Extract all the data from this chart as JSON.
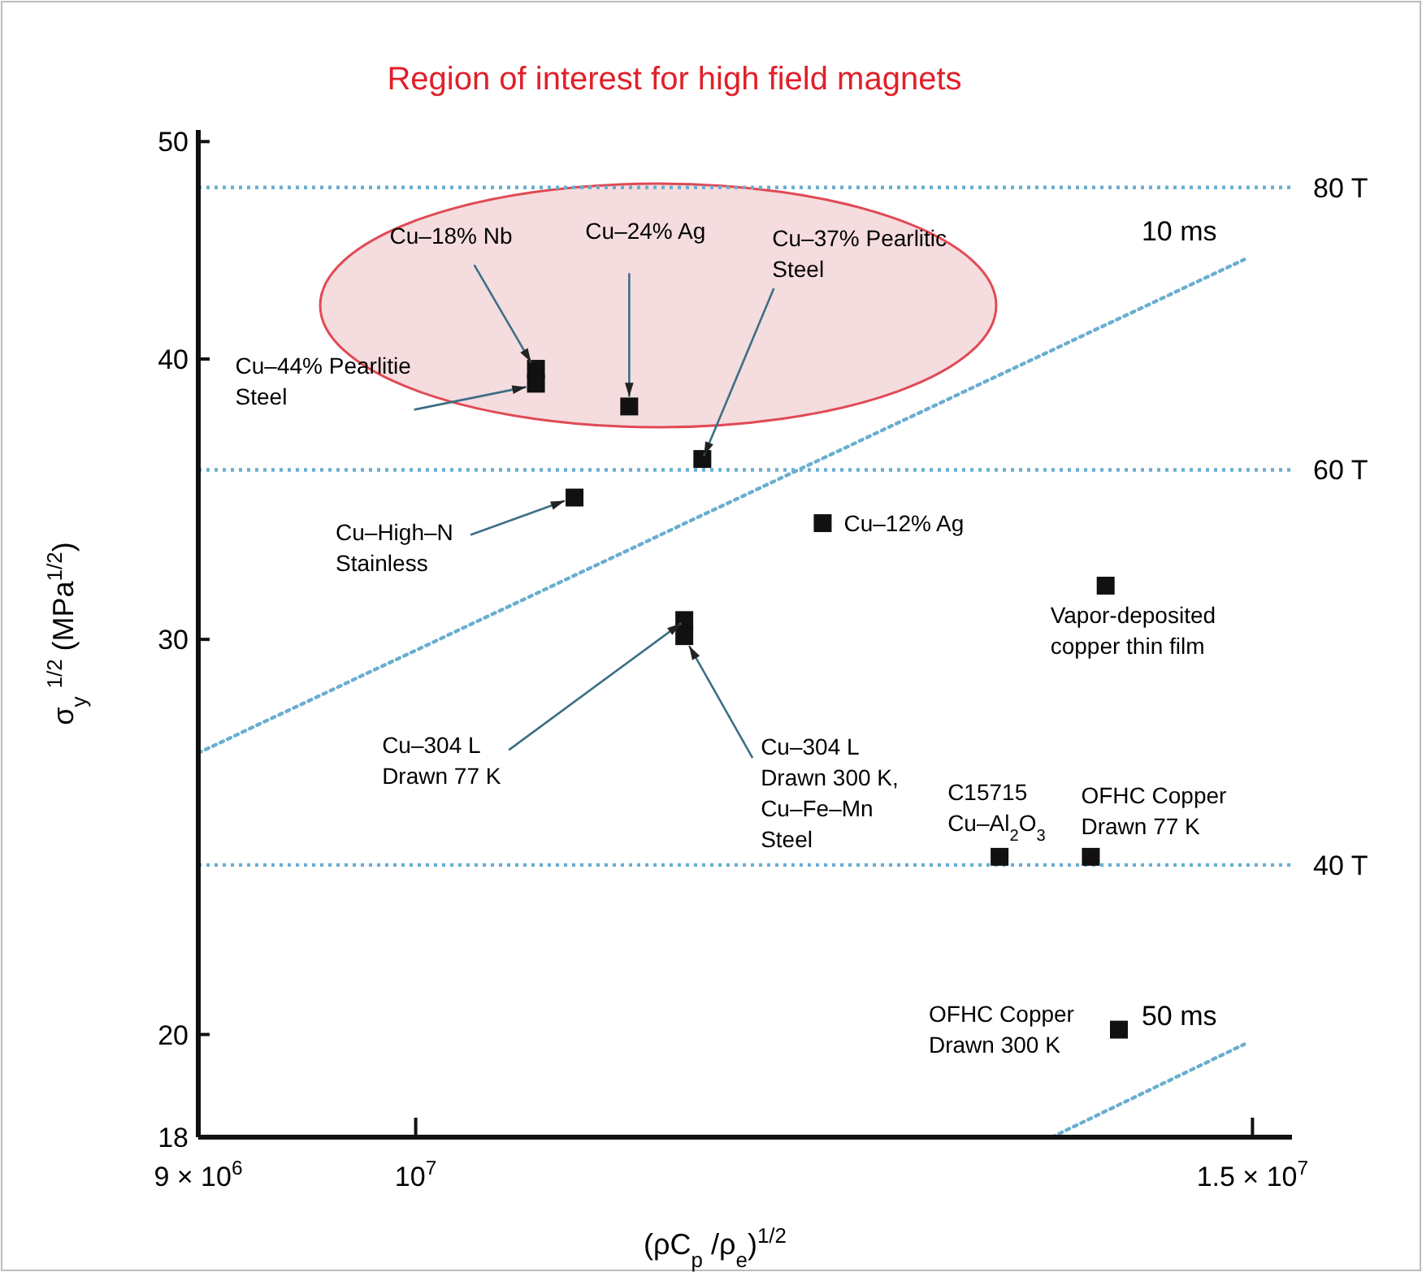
{
  "chart_data": {
    "type": "scatter",
    "title": "Region of interest for high field magnets",
    "xlabel": "(ρC$_{p}$ /ρ$_{e}$)$^{1/2}$",
    "ylabel": "σ$_{y}$ $^{1/2}$ (MPa$^{1/2}$)",
    "log": "xy",
    "grid": false,
    "legend": false,
    "xlim": [
      9000000,
      15290000
    ],
    "ylim": [
      18,
      50.6
    ],
    "xticks": [
      {
        "value": 9000000,
        "label": "9 × 10$^{6}$"
      },
      {
        "value": 10000000,
        "label": "10$^{7}$"
      },
      {
        "value": 15000000,
        "label": "1.5 × 10$^{7}$"
      }
    ],
    "yticks": [
      18,
      20,
      30,
      40,
      50
    ],
    "series": [
      {
        "type": "scatter",
        "color": "#111111",
        "marker": "square",
        "x": [
          10600000,
          10600000,
          11090000,
          11490000,
          10800000,
          12180000,
          13970000,
          11390000,
          11390000,
          13270000,
          13870000,
          14060000
        ],
        "values": [
          39.6,
          39.0,
          38.1,
          36.1,
          34.7,
          33.8,
          31.7,
          30.6,
          30.1,
          24.0,
          24.0,
          20.1
        ]
      },
      {
        "type": "line",
        "name": "10 ms",
        "color": "#6aaed0",
        "line_style": "dotted",
        "marker": "none",
        "x": [
          9000000,
          14940000
        ],
        "values": [
          26.7,
          44.3
        ]
      },
      {
        "type": "line",
        "name": "50 ms",
        "color": "#6aaed0",
        "line_style": "dotted",
        "marker": "none",
        "x": [
          13610000,
          14940000
        ],
        "values": [
          18,
          19.8
        ]
      }
    ],
    "ref_lines": [
      {
        "axis": "y",
        "value": 47.7,
        "label": "80 T",
        "color": "#6aaed0",
        "line_style": "dotted"
      },
      {
        "axis": "y",
        "value": 35.7,
        "label": "60 T",
        "color": "#6aaed0",
        "line_style": "dotted"
      },
      {
        "axis": "y",
        "value": 23.8,
        "label": "40 T",
        "color": "#6aaed0",
        "line_style": "dotted"
      }
    ],
    "annotations": [
      {
        "text": "Cu–18% Nb",
        "x": 10600000,
        "y": 39.6
      },
      {
        "text": "Cu–44% Pearlitie\nSteel",
        "x": 10600000,
        "y": 39.0
      },
      {
        "text": "Cu–24% Ag",
        "x": 11090000,
        "y": 38.1
      },
      {
        "text": "Cu–37% Pearlitic\nSteel",
        "x": 11490000,
        "y": 36.1
      },
      {
        "text": "Cu–High–N\nStainless",
        "x": 10800000,
        "y": 34.7
      },
      {
        "text": "Cu–12% Ag",
        "x": 12180000,
        "y": 33.8
      },
      {
        "text": "Vapor-deposited\ncopper thin film",
        "x": 13970000,
        "y": 31.7
      },
      {
        "text": "Cu–304 L\nDrawn 77 K",
        "x": 11390000,
        "y": 30.6
      },
      {
        "text": "Cu–304 L\nDrawn 300 K,\nCu–Fe–Mn\nSteel",
        "x": 11390000,
        "y": 30.1
      },
      {
        "text": "C15715\nCu–Al$_{2}$O$_{3}$",
        "x": 13270000,
        "y": 24.0
      },
      {
        "text": "OFHC Copper\nDrawn 77 K",
        "x": 13870000,
        "y": 24.0
      },
      {
        "text": "OFHC Copper\nDrawn 300 K",
        "x": 14060000,
        "y": 20.1
      }
    ]
  }
}
